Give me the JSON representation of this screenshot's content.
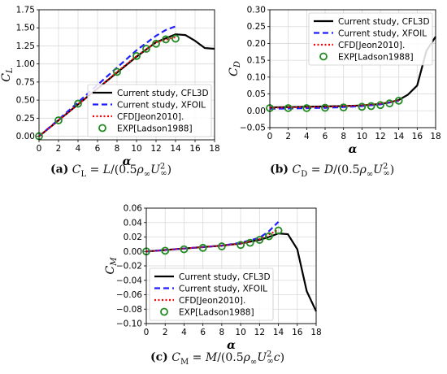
{
  "captions": {
    "a": {
      "tag": "(a)",
      "formula": "C_L = L/(0.5ρ∞U∞²)"
    },
    "b": {
      "tag": "(b)",
      "formula": "C_D = D/(0.5ρ∞U∞²)"
    },
    "c": {
      "tag": "(c)",
      "formula": "C_M = M/(0.5ρ∞U∞²c)"
    }
  },
  "colors": {
    "cfl3d": "#000000",
    "xfoil": "#1f1fff",
    "cfd": "#ff0000",
    "exp": "#228b22"
  },
  "chart_data": [
    {
      "id": "a",
      "type": "line",
      "xlabel": "α",
      "ylabel": "C_L",
      "xlim": [
        0,
        18
      ],
      "ylim": [
        -0.05,
        1.75
      ],
      "xticks": [
        0,
        2,
        4,
        6,
        8,
        10,
        12,
        14,
        16,
        18
      ],
      "yticks": [
        0.0,
        0.25,
        0.5,
        0.75,
        1.0,
        1.25,
        1.5,
        1.75
      ],
      "ytick_labels": [
        "0.00",
        "0.25",
        "0.50",
        "0.75",
        "1.00",
        "1.25",
        "1.50",
        "1.75"
      ],
      "legend": "bottom-right",
      "series": [
        {
          "name": "Current study, CFL3D",
          "style": "solid",
          "color": "#000000",
          "x": [
            0,
            2,
            4,
            6,
            8,
            10,
            12,
            14,
            15,
            16,
            17,
            18
          ],
          "y": [
            0.0,
            0.22,
            0.44,
            0.66,
            0.88,
            1.1,
            1.3,
            1.41,
            1.4,
            1.32,
            1.22,
            1.21
          ]
        },
        {
          "name": "Current study, XFOIL",
          "style": "dashed",
          "color": "#1f1fff",
          "x": [
            0,
            2,
            4,
            6,
            8,
            10,
            12,
            13,
            14
          ],
          "y": [
            0.0,
            0.23,
            0.47,
            0.71,
            0.95,
            1.19,
            1.39,
            1.47,
            1.52
          ]
        },
        {
          "name": "CFD[Jeon2010].",
          "style": "dotted",
          "color": "#ff0000",
          "x": [
            0,
            2,
            4,
            6,
            8,
            10,
            12,
            14
          ],
          "y": [
            0.0,
            0.22,
            0.44,
            0.66,
            0.89,
            1.11,
            1.3,
            1.37
          ]
        },
        {
          "name": "EXP[Ladson1988]",
          "style": "marker",
          "color": "#228b22",
          "x": [
            0,
            2,
            4,
            8,
            10,
            11,
            12,
            13,
            14
          ],
          "y": [
            0.0,
            0.22,
            0.45,
            0.89,
            1.11,
            1.21,
            1.28,
            1.34,
            1.35
          ]
        }
      ]
    },
    {
      "id": "b",
      "type": "line",
      "xlabel": "α",
      "ylabel": "C_D",
      "xlim": [
        0,
        18
      ],
      "ylim": [
        -0.05,
        0.3
      ],
      "xticks": [
        0,
        2,
        4,
        6,
        8,
        10,
        12,
        14,
        16,
        18
      ],
      "yticks": [
        -0.05,
        0.0,
        0.05,
        0.1,
        0.15,
        0.2,
        0.25,
        0.3
      ],
      "ytick_labels": [
        "−0.05",
        "0.00",
        "0.05",
        "0.10",
        "0.15",
        "0.20",
        "0.25",
        "0.30"
      ],
      "legend": "top-right",
      "series": [
        {
          "name": "Current study, CFL3D",
          "style": "solid",
          "color": "#000000",
          "x": [
            0,
            2,
            4,
            6,
            8,
            10,
            12,
            13,
            14,
            15,
            16,
            17,
            18
          ],
          "y": [
            0.01,
            0.011,
            0.012,
            0.013,
            0.014,
            0.016,
            0.02,
            0.025,
            0.032,
            0.048,
            0.075,
            0.178,
            0.22
          ]
        },
        {
          "name": "Current study, XFOIL",
          "style": "dashed",
          "color": "#1f1fff",
          "x": [
            0,
            2,
            4,
            6,
            8,
            10,
            12,
            14
          ],
          "y": [
            0.006,
            0.007,
            0.008,
            0.009,
            0.011,
            0.014,
            0.019,
            0.03
          ]
        },
        {
          "name": "CFD[Jeon2010].",
          "style": "dotted",
          "color": "#ff0000",
          "x": [
            0,
            2,
            4,
            6,
            8,
            10,
            12,
            14
          ],
          "y": [
            0.009,
            0.01,
            0.011,
            0.012,
            0.014,
            0.016,
            0.021,
            0.031
          ]
        },
        {
          "name": "EXP[Ladson1988]",
          "style": "marker",
          "color": "#228b22",
          "x": [
            0,
            2,
            4,
            6,
            8,
            10,
            11,
            12,
            13,
            14
          ],
          "y": [
            0.008,
            0.008,
            0.008,
            0.009,
            0.01,
            0.012,
            0.014,
            0.017,
            0.022,
            0.03
          ]
        }
      ]
    },
    {
      "id": "c",
      "type": "line",
      "xlabel": "α",
      "ylabel": "C_M",
      "xlim": [
        0,
        18
      ],
      "ylim": [
        -0.1,
        0.06
      ],
      "xticks": [
        0,
        2,
        4,
        6,
        8,
        10,
        12,
        14,
        16,
        18
      ],
      "yticks": [
        -0.1,
        -0.08,
        -0.06,
        -0.04,
        -0.02,
        0.0,
        0.02,
        0.04,
        0.06
      ],
      "ytick_labels": [
        "−0.10",
        "−0.08",
        "−0.06",
        "−0.04",
        "−0.02",
        "0.00",
        "0.02",
        "0.04",
        "0.06"
      ],
      "legend": "bottom-left",
      "series": [
        {
          "name": "Current study, CFL3D",
          "style": "solid",
          "color": "#000000",
          "x": [
            0,
            2,
            4,
            6,
            8,
            10,
            12,
            13,
            14,
            15,
            16,
            17,
            18
          ],
          "y": [
            0.0,
            0.002,
            0.004,
            0.006,
            0.008,
            0.011,
            0.016,
            0.02,
            0.025,
            0.024,
            0.003,
            -0.055,
            -0.083
          ]
        },
        {
          "name": "Current study, XFOIL",
          "style": "dashed",
          "color": "#1f1fff",
          "x": [
            0,
            2,
            4,
            6,
            8,
            10,
            12,
            13,
            14
          ],
          "y": [
            0.0,
            0.002,
            0.004,
            0.006,
            0.008,
            0.012,
            0.019,
            0.028,
            0.041
          ]
        },
        {
          "name": "CFD[Jeon2010].",
          "style": "dotted",
          "color": "#ff0000",
          "x": [
            0,
            2,
            4,
            6,
            8,
            10,
            12,
            14
          ],
          "y": [
            0.0,
            0.002,
            0.004,
            0.006,
            0.008,
            0.011,
            0.017,
            0.03
          ]
        },
        {
          "name": "EXP[Ladson1988]",
          "style": "marker",
          "color": "#228b22",
          "x": [
            0,
            2,
            4,
            6,
            8,
            10,
            11,
            12,
            13,
            14
          ],
          "y": [
            0.0,
            0.001,
            0.003,
            0.005,
            0.007,
            0.009,
            0.012,
            0.016,
            0.021,
            0.029
          ]
        }
      ]
    }
  ]
}
